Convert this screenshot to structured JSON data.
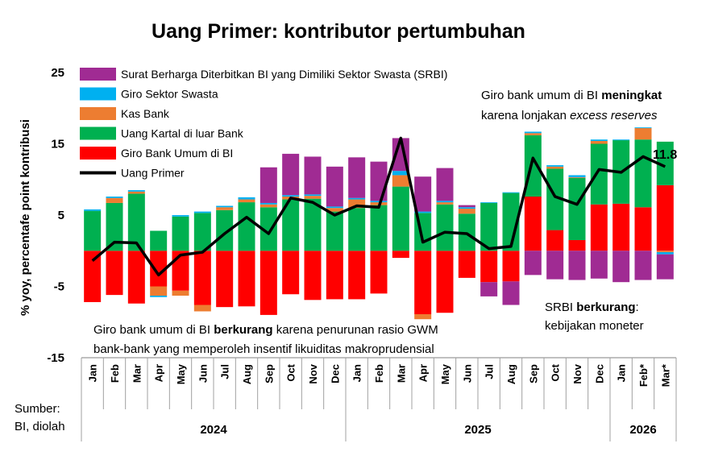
{
  "chart_data": {
    "type": "bar",
    "stacked": true,
    "title": "Uang Primer: kontributor pertumbuhan",
    "ylabel": "% yoy, percentafe point kontribusi",
    "ylim": [
      -15,
      25
    ],
    "yticks": [
      25,
      15,
      5,
      -5,
      -15
    ],
    "grid": false,
    "legend_position": "top-left",
    "categories": [
      "Jan",
      "Feb",
      "Mar",
      "Apr",
      "May",
      "Jun",
      "Jul",
      "Aug",
      "Sep",
      "Oct",
      "Nov",
      "Dec",
      "Jan",
      "Feb",
      "Mar",
      "Apr",
      "May",
      "Jun",
      "Jul",
      "Aug",
      "Sep",
      "Oct",
      "Nov",
      "Dec",
      "Jan",
      "Feb*",
      "Mar*"
    ],
    "years": [
      {
        "label": "2024",
        "start": 0,
        "end": 11
      },
      {
        "label": "2025",
        "start": 12,
        "end": 23
      },
      {
        "label": "2026",
        "start": 24,
        "end": 26
      }
    ],
    "series": [
      {
        "key": "gbu",
        "name": "Giro Bank Umum di BI",
        "color": "#ff0000",
        "kind": "bar",
        "values": [
          -7.2,
          -6.2,
          -7.4,
          -5.0,
          -5.6,
          -7.6,
          -7.9,
          -7.8,
          -9.0,
          -6.1,
          -6.9,
          -6.8,
          -6.8,
          -6.0,
          -1.0,
          -8.9,
          -8.7,
          -3.8,
          -4.4,
          -4.3,
          7.6,
          2.9,
          1.5,
          6.5,
          6.6,
          6.1,
          9.2
        ]
      },
      {
        "key": "uk",
        "name": "Uang Kartal di luar Bank",
        "color": "#00b050",
        "kind": "bar",
        "values": [
          5.6,
          6.7,
          8.0,
          2.8,
          4.8,
          5.3,
          5.7,
          6.8,
          6.1,
          7.2,
          7.3,
          5.5,
          6.0,
          6.4,
          9.0,
          5.3,
          6.5,
          5.2,
          6.7,
          8.1,
          8.6,
          8.6,
          8.7,
          8.5,
          8.9,
          9.5,
          6.1
        ]
      },
      {
        "key": "kas",
        "name": "Kas Bank",
        "color": "#ed7d31",
        "kind": "bar",
        "values": [
          0.0,
          0.7,
          0.3,
          -1.3,
          -0.7,
          -0.9,
          0.4,
          0.4,
          0.4,
          0.4,
          0.4,
          0.5,
          1.2,
          0.4,
          1.6,
          -0.7,
          0.3,
          0.7,
          0.0,
          0.0,
          0.3,
          0.3,
          0.1,
          0.4,
          0.0,
          1.6,
          -0.2
        ]
      },
      {
        "key": "giro",
        "name": "Giro Sektor Swasta",
        "color": "#00b0f0",
        "kind": "bar",
        "values": [
          0.2,
          0.2,
          0.2,
          -0.2,
          0.2,
          0.2,
          0.2,
          0.3,
          0.2,
          0.2,
          0.2,
          0.2,
          0.2,
          0.2,
          0.6,
          0.2,
          0.2,
          0.2,
          0.1,
          0.1,
          0.2,
          0.2,
          0.3,
          0.2,
          0.1,
          0.1,
          -0.3
        ]
      },
      {
        "key": "srbi",
        "name": "Surat Berharga Diterbitkan BI yang Dimiliki Sektor Swasta (SRBI)",
        "color": "#a02b93",
        "kind": "bar",
        "values": [
          0.0,
          0.0,
          0.0,
          0.0,
          0.0,
          0.0,
          0.0,
          0.0,
          5.0,
          5.8,
          5.3,
          5.6,
          5.7,
          5.5,
          4.6,
          4.9,
          4.6,
          0.3,
          -2.0,
          -3.3,
          -3.4,
          -4.0,
          -4.1,
          -3.9,
          -4.4,
          -4.1,
          -3.5
        ]
      },
      {
        "key": "up",
        "name": "Uang Primer",
        "color": "#000000",
        "kind": "line",
        "values": [
          -1.4,
          1.2,
          1.1,
          -3.4,
          -0.6,
          -0.2,
          2.4,
          4.7,
          2.4,
          7.4,
          6.8,
          5.0,
          6.3,
          6.1,
          15.8,
          1.2,
          2.6,
          2.4,
          0.3,
          0.6,
          13.0,
          7.6,
          6.5,
          11.4,
          11.0,
          13.2,
          11.8
        ]
      }
    ],
    "last_value_label": "11.8",
    "annotations": {
      "note1": "Giro bank umum di BI meningkat karena lonjakan excess reserves",
      "note2": "SRBI berkurang: kebijakan moneter",
      "note3": "Giro bank umum di BI berkurang karena penurunan rasio GWM bank-bank yang memperoleh insentif likuiditas makroprudensial"
    }
  },
  "labels": {
    "note1_line1_pre": "Giro bank umum di BI ",
    "note1_line1_bold": "meningkat",
    "note1_line2_pre": "karena lonjakan ",
    "note1_line2_italic": "excess reserves",
    "note2_line1_pre": "SRBI ",
    "note2_line1_bold": "berkurang",
    "note2_line1_post": ":",
    "note2_line2": "kebijakan moneter",
    "note3_line1_pre": "Giro bank umum di BI ",
    "note3_line1_bold": "berkurang",
    "note3_line1_post": " karena penurunan rasio GWM",
    "note3_line2": "bank-bank yang memperoleh insentif likuiditas makroprudensial",
    "source_line1": "Sumber:",
    "source_line2": "BI, diolah"
  }
}
